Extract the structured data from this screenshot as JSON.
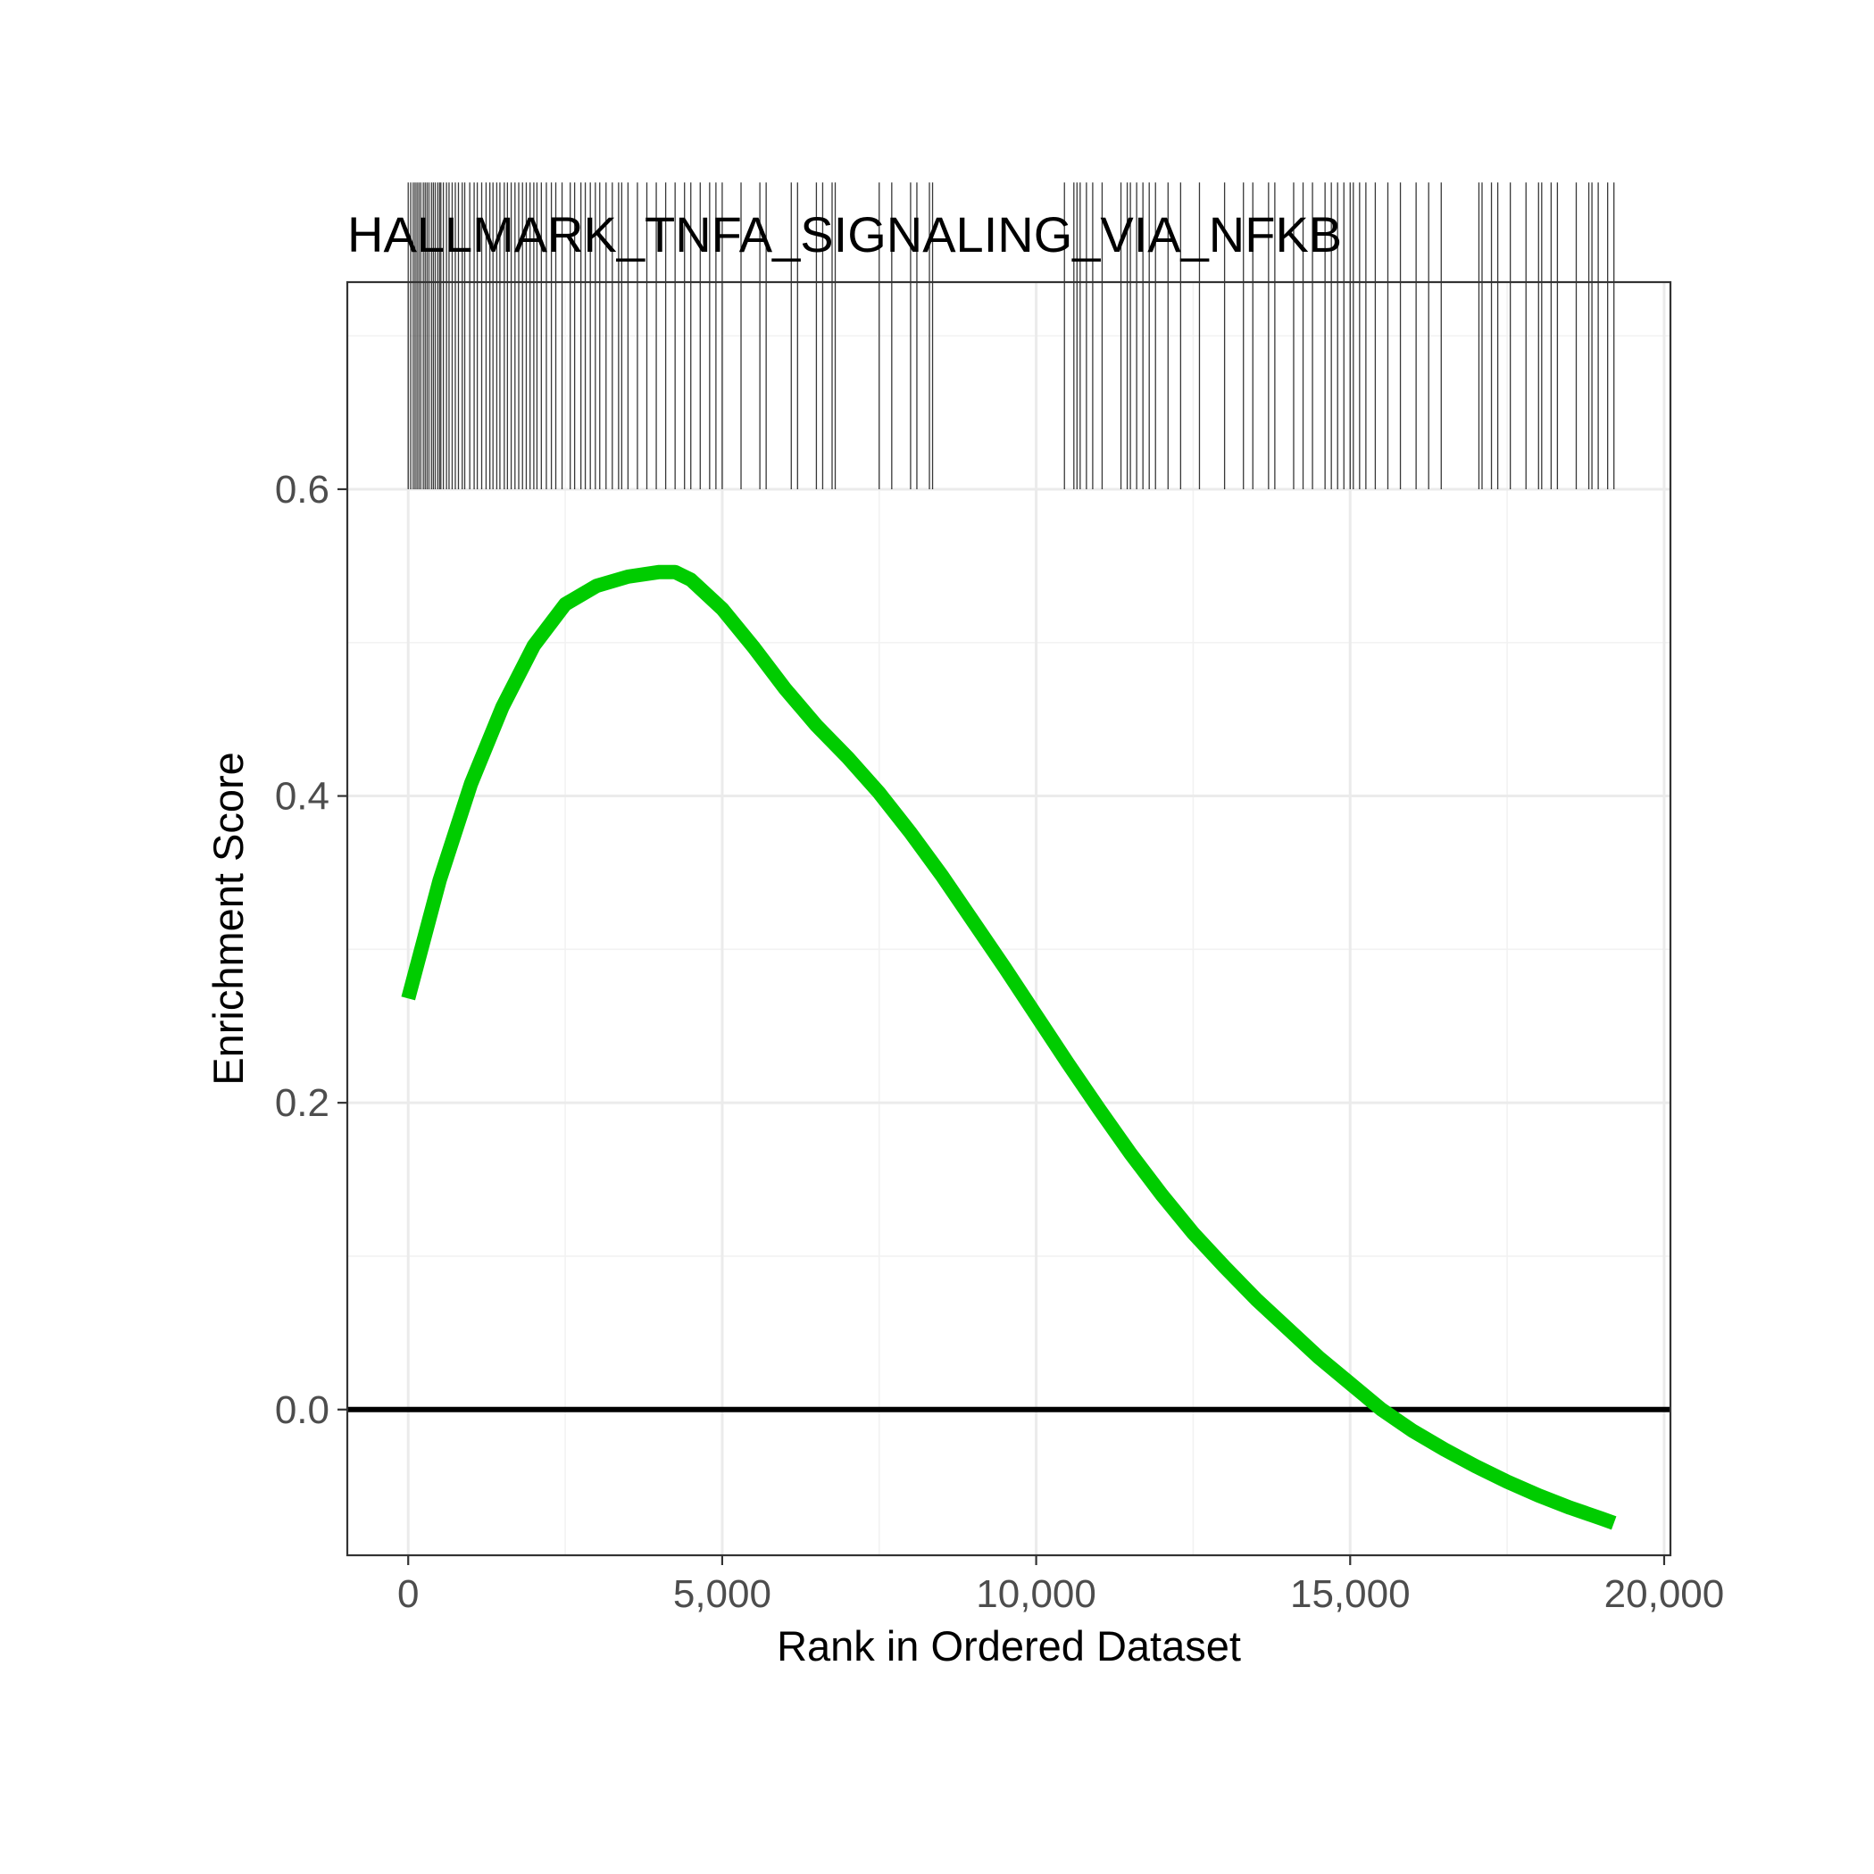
{
  "chart_data": {
    "type": "line",
    "title": "HALLMARK_TNFA_SIGNALING_VIA_NFKB",
    "xlabel": "Rank in Ordered Dataset",
    "ylabel": "Enrichment Score",
    "xlim": [
      -970,
      20100
    ],
    "ylim": [
      -0.095,
      0.735
    ],
    "x_ticks": [
      0,
      5000,
      10000,
      15000,
      20000
    ],
    "x_tick_labels": [
      "0",
      "5,000",
      "10,000",
      "15,000",
      "20,000"
    ],
    "y_ticks": [
      0.0,
      0.2,
      0.4,
      0.6
    ],
    "y_tick_labels": [
      "0.0",
      "0.2",
      "0.4",
      "0.6"
    ],
    "grid": true,
    "reference_line": {
      "y": 0.0,
      "color": "#000000"
    },
    "series": [
      {
        "color": "#00cc00",
        "x": [
          0,
          500,
          1000,
          1500,
          2000,
          2500,
          3000,
          3500,
          4000,
          4250,
          4500,
          5000,
          5500,
          6000,
          6500,
          7000,
          7500,
          8000,
          8500,
          9000,
          9500,
          10000,
          10500,
          11000,
          11500,
          12000,
          12500,
          13000,
          13500,
          14000,
          14500,
          15000,
          15500,
          16000,
          16500,
          17000,
          17500,
          18000,
          18500,
          19000,
          19200
        ],
        "y": [
          0.268,
          0.345,
          0.408,
          0.458,
          0.498,
          0.525,
          0.537,
          0.543,
          0.546,
          0.546,
          0.541,
          0.522,
          0.497,
          0.47,
          0.446,
          0.425,
          0.402,
          0.376,
          0.348,
          0.318,
          0.288,
          0.257,
          0.226,
          0.196,
          0.167,
          0.14,
          0.115,
          0.093,
          0.072,
          0.053,
          0.034,
          0.017,
          0.0,
          -0.014,
          -0.026,
          -0.037,
          -0.047,
          -0.056,
          -0.064,
          -0.071,
          -0.074
        ]
      }
    ],
    "hit_ranks": [
      0,
      40,
      80,
      110,
      140,
      170,
      200,
      240,
      270,
      300,
      330,
      370,
      400,
      430,
      470,
      500,
      520,
      560,
      610,
      650,
      700,
      750,
      800,
      860,
      900,
      980,
      1050,
      1100,
      1170,
      1240,
      1300,
      1350,
      1410,
      1460,
      1530,
      1580,
      1640,
      1700,
      1760,
      1820,
      1880,
      1940,
      2000,
      2050,
      2120,
      2200,
      2280,
      2350,
      2450,
      2580,
      2650,
      2750,
      2820,
      2900,
      2980,
      3050,
      3150,
      3250,
      3350,
      3400,
      3500,
      3650,
      3800,
      3950,
      4100,
      4250,
      4400,
      4500,
      4650,
      4800,
      4900,
      5000,
      5300,
      5600,
      5700,
      6100,
      6200,
      6500,
      6600,
      6750,
      6800,
      7500,
      7700,
      8000,
      8100,
      8300,
      8350,
      10450,
      10600,
      10650,
      10700,
      10800,
      10900,
      11050,
      11350,
      11450,
      11500,
      11600,
      11700,
      11800,
      11900,
      12100,
      12300,
      12600,
      13000,
      13300,
      13450,
      13700,
      13800,
      14100,
      14250,
      14400,
      14600,
      14700,
      14800,
      14900,
      15000,
      15050,
      15150,
      15250,
      15400,
      15600,
      15800,
      16050,
      16250,
      16450,
      17050,
      17100,
      17250,
      17350,
      17550,
      17800,
      18000,
      18050,
      18200,
      18300,
      18600,
      18800,
      18850,
      18950,
      19100,
      19200
    ]
  }
}
